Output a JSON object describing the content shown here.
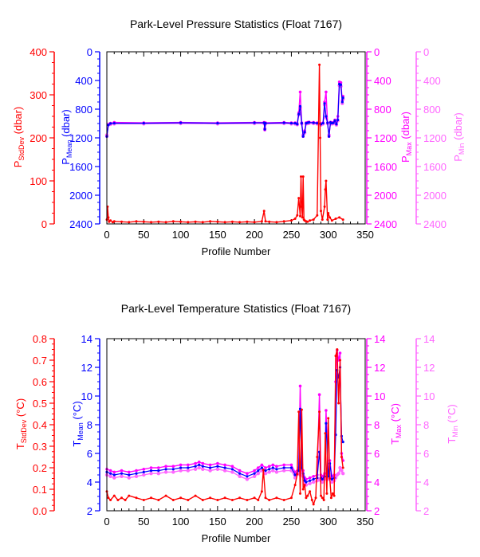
{
  "colors": {
    "stddev": "#ff0000",
    "mean": "#0000ff",
    "max": "#ff00ff",
    "min": "#ff66ff",
    "frame": "#000000"
  },
  "chart_data": [
    {
      "type": "line",
      "title": "Park-Level Pressure Statistics (Float 7167)",
      "xlabel": "Profile Number",
      "xlim": [
        0,
        350
      ],
      "x_ticks": [
        "0",
        "50",
        "100",
        "150",
        "200",
        "250",
        "300",
        "350"
      ],
      "axes": {
        "stddev": {
          "label_main": "P",
          "label_sub": "StdDev",
          "label_unit": " (dbar)",
          "range": [
            0,
            400
          ],
          "ticks": [
            "0",
            "100",
            "200",
            "300",
            "400"
          ]
        },
        "mean": {
          "label_main": "P",
          "label_sub": "Mean",
          "label_unit": " (dbar)",
          "range": [
            2400,
            0
          ],
          "ticks": [
            "0",
            "400",
            "800",
            "1200",
            "1600",
            "2000",
            "2400"
          ]
        },
        "max": {
          "label_main": "P",
          "label_sub": "Max",
          "label_unit": " (dbar)",
          "range": [
            2400,
            0
          ],
          "ticks": [
            "0",
            "400",
            "800",
            "1200",
            "1600",
            "2000",
            "2400"
          ]
        },
        "min": {
          "label_main": "P",
          "label_sub": "Min",
          "label_unit": " (dbar)",
          "range": [
            2400,
            0
          ],
          "ticks": [
            "0",
            "400",
            "800",
            "1200",
            "1600",
            "2000",
            "2400"
          ]
        }
      },
      "series": [
        {
          "name": "P Max",
          "axis": "max",
          "x": [
            0,
            2,
            5,
            10,
            50,
            100,
            150,
            200,
            213,
            214,
            215,
            240,
            250,
            255,
            258,
            260,
            262,
            264,
            266,
            268,
            270,
            272,
            274,
            280,
            285,
            290,
            293,
            295,
            297,
            299,
            301,
            303,
            305,
            307,
            309,
            311,
            313,
            315,
            317,
            319,
            320
          ],
          "y": [
            1180,
            1020,
            995,
            985,
            990,
            985,
            990,
            985,
            985,
            1090,
            990,
            985,
            990,
            990,
            1000,
            850,
            560,
            990,
            1180,
            1100,
            990,
            985,
            980,
            985,
            990,
            1000,
            990,
            700,
            560,
            990,
            1180,
            980,
            990,
            985,
            950,
            1000,
            900,
            420,
            430,
            680,
            620
          ]
        },
        {
          "name": "P Mean",
          "axis": "mean",
          "x": [
            0,
            2,
            5,
            10,
            50,
            100,
            150,
            200,
            213,
            214,
            215,
            240,
            250,
            255,
            258,
            260,
            262,
            264,
            266,
            268,
            270,
            272,
            274,
            280,
            285,
            290,
            293,
            295,
            297,
            299,
            301,
            303,
            305,
            307,
            309,
            311,
            313,
            315,
            317,
            319,
            320
          ],
          "y": [
            1180,
            1020,
            1000,
            995,
            995,
            990,
            995,
            990,
            990,
            1080,
            995,
            990,
            995,
            995,
            1010,
            870,
            760,
            995,
            1180,
            1120,
            995,
            990,
            985,
            990,
            995,
            1010,
            995,
            720,
            900,
            990,
            1180,
            985,
            995,
            990,
            960,
            1010,
            950,
            450,
            460,
            700,
            640
          ]
        },
        {
          "name": "P Min",
          "axis": "min",
          "x": [
            0,
            2,
            5,
            10,
            50,
            100,
            150,
            200,
            213,
            214,
            215,
            240,
            250,
            255,
            258,
            260,
            262,
            264,
            266,
            268,
            270,
            272,
            274,
            280,
            285,
            290,
            293,
            295,
            297,
            299,
            301,
            303,
            305,
            307,
            309,
            311,
            313,
            315,
            317,
            319,
            320
          ],
          "y": [
            1160,
            1010,
            1010,
            1005,
            1005,
            1000,
            1005,
            1000,
            1000,
            1070,
            1005,
            1000,
            1005,
            1005,
            1015,
            880,
            780,
            1005,
            1160,
            1130,
            1005,
            1000,
            995,
            1000,
            1005,
            1020,
            1005,
            740,
            920,
            1000,
            1160,
            995,
            1005,
            1000,
            970,
            1020,
            960,
            470,
            480,
            720,
            660
          ]
        },
        {
          "name": "P StdDev",
          "axis": "stddev",
          "x": [
            0,
            1,
            2,
            3,
            5,
            8,
            10,
            20,
            30,
            40,
            50,
            60,
            70,
            80,
            90,
            100,
            110,
            120,
            130,
            140,
            150,
            160,
            170,
            180,
            190,
            200,
            210,
            213,
            215,
            220,
            230,
            240,
            250,
            255,
            258,
            260,
            262,
            263,
            264,
            265,
            266,
            267,
            268,
            270,
            272,
            275,
            280,
            285,
            288,
            289,
            290,
            292,
            295,
            296,
            297,
            299,
            300,
            302,
            305,
            310,
            315,
            320
          ],
          "y": [
            10,
            40,
            15,
            5,
            8,
            4,
            6,
            5,
            4,
            6,
            5,
            4,
            5,
            4,
            6,
            5,
            4,
            5,
            4,
            6,
            5,
            4,
            5,
            4,
            5,
            4,
            6,
            30,
            6,
            5,
            4,
            6,
            8,
            12,
            20,
            60,
            18,
            110,
            40,
            15,
            110,
            10,
            8,
            6,
            5,
            8,
            10,
            20,
            370,
            200,
            30,
            10,
            40,
            80,
            100,
            10,
            25,
            15,
            8,
            12,
            15,
            10
          ]
        }
      ]
    },
    {
      "type": "line",
      "title": "Park-Level Temperature Statistics (Float 7167)",
      "xlabel": "Profile Number",
      "xlim": [
        0,
        350
      ],
      "x_ticks": [
        "0",
        "50",
        "100",
        "150",
        "200",
        "250",
        "300",
        "350"
      ],
      "axes": {
        "stddev": {
          "label_main": "T",
          "label_sub": "StdDev",
          "label_unit": " (°C)",
          "range": [
            0,
            0.8
          ],
          "ticks": [
            "0.0",
            "0.1",
            "0.2",
            "0.3",
            "0.4",
            "0.5",
            "0.6",
            "0.7",
            "0.8"
          ]
        },
        "mean": {
          "label_main": "T",
          "label_sub": "Mean",
          "label_unit": " (°C)",
          "range": [
            2,
            14
          ],
          "ticks": [
            "2",
            "4",
            "6",
            "8",
            "10",
            "12",
            "14"
          ]
        },
        "max": {
          "label_main": "T",
          "label_sub": "Max",
          "label_unit": " (°C)",
          "range": [
            2,
            14
          ],
          "ticks": [
            "2",
            "4",
            "6",
            "8",
            "10",
            "12",
            "14"
          ]
        },
        "min": {
          "label_main": "T",
          "label_sub": "Min",
          "label_unit": " (°C)",
          "range": [
            2,
            14
          ],
          "ticks": [
            "2",
            "4",
            "6",
            "8",
            "10",
            "12",
            "14"
          ]
        }
      },
      "series": [
        {
          "name": "T Max",
          "axis": "max",
          "x": [
            0,
            5,
            10,
            20,
            30,
            40,
            50,
            60,
            70,
            80,
            90,
            100,
            110,
            120,
            125,
            130,
            140,
            150,
            160,
            170,
            180,
            190,
            200,
            205,
            210,
            215,
            220,
            225,
            230,
            240,
            250,
            255,
            260,
            262,
            264,
            266,
            268,
            270,
            275,
            280,
            285,
            288,
            290,
            292,
            295,
            297,
            300,
            302,
            305,
            308,
            310,
            312,
            314,
            316,
            318,
            320
          ],
          "y": [
            4.9,
            4.8,
            4.7,
            4.8,
            4.7,
            4.8,
            4.9,
            5.0,
            5.0,
            5.1,
            5.1,
            5.2,
            5.2,
            5.3,
            5.4,
            5.3,
            5.2,
            5.3,
            5.2,
            5.1,
            4.8,
            4.6,
            4.8,
            5.0,
            5.2,
            5.0,
            5.1,
            5.2,
            5.1,
            5.2,
            5.2,
            4.7,
            5.0,
            10.7,
            5.2,
            4.8,
            4.3,
            4.2,
            4.3,
            4.4,
            4.5,
            10.1,
            4.5,
            4.4,
            4.6,
            9.0,
            4.6,
            5.5,
            4.4,
            4.5,
            11.0,
            13.2,
            12.5,
            13.0,
            6.0,
            5.5
          ]
        },
        {
          "name": "T Mean",
          "axis": "mean",
          "x": [
            0,
            5,
            10,
            20,
            30,
            40,
            50,
            60,
            70,
            80,
            90,
            100,
            110,
            120,
            125,
            130,
            140,
            150,
            160,
            170,
            180,
            190,
            200,
            205,
            210,
            215,
            220,
            225,
            230,
            240,
            250,
            255,
            260,
            262,
            264,
            266,
            268,
            270,
            275,
            280,
            285,
            288,
            290,
            292,
            295,
            297,
            300,
            302,
            305,
            308,
            310,
            312,
            314,
            316,
            318,
            320
          ],
          "y": [
            4.7,
            4.6,
            4.5,
            4.6,
            4.5,
            4.6,
            4.7,
            4.8,
            4.8,
            4.9,
            4.9,
            5.0,
            5.0,
            5.1,
            5.2,
            5.1,
            5.0,
            5.1,
            5.0,
            4.9,
            4.6,
            4.4,
            4.6,
            4.8,
            5.0,
            4.8,
            4.9,
            5.0,
            4.9,
            5.0,
            5.0,
            4.5,
            4.8,
            9.1,
            5.0,
            4.6,
            4.1,
            4.0,
            4.1,
            4.2,
            4.3,
            6.1,
            4.3,
            4.2,
            4.4,
            8.1,
            4.4,
            5.3,
            4.2,
            4.3,
            7.3,
            11.8,
            11.3,
            12.0,
            7.2,
            6.8
          ]
        },
        {
          "name": "T Min",
          "axis": "min",
          "x": [
            0,
            5,
            10,
            20,
            30,
            40,
            50,
            60,
            70,
            80,
            90,
            100,
            110,
            120,
            125,
            130,
            140,
            150,
            160,
            170,
            180,
            190,
            200,
            205,
            210,
            215,
            220,
            225,
            230,
            240,
            250,
            255,
            260,
            262,
            264,
            266,
            268,
            270,
            275,
            280,
            285,
            288,
            290,
            292,
            295,
            297,
            300,
            302,
            305,
            308,
            310,
            312,
            314,
            316,
            318,
            320
          ],
          "y": [
            4.5,
            4.4,
            4.3,
            4.4,
            4.3,
            4.4,
            4.5,
            4.6,
            4.6,
            4.7,
            4.7,
            4.8,
            4.8,
            4.9,
            5.0,
            4.9,
            4.8,
            4.9,
            4.8,
            4.7,
            4.4,
            4.2,
            4.4,
            4.6,
            4.8,
            4.6,
            4.7,
            4.8,
            4.7,
            4.8,
            4.8,
            4.3,
            4.6,
            4.5,
            4.8,
            4.4,
            3.9,
            3.8,
            3.9,
            4.0,
            4.1,
            4.2,
            4.1,
            4.0,
            4.2,
            4.3,
            4.2,
            4.5,
            4.0,
            4.1,
            4.3,
            4.5,
            4.6,
            5.0,
            4.8,
            4.6
          ]
        },
        {
          "name": "T StdDev",
          "axis": "stddev",
          "x": [
            0,
            2,
            5,
            10,
            15,
            20,
            25,
            30,
            40,
            50,
            60,
            70,
            80,
            90,
            100,
            110,
            120,
            130,
            140,
            150,
            160,
            170,
            180,
            190,
            200,
            205,
            210,
            212,
            215,
            220,
            230,
            240,
            250,
            255,
            258,
            260,
            262,
            264,
            266,
            268,
            270,
            272,
            275,
            278,
            280,
            283,
            285,
            288,
            290,
            292,
            294,
            296,
            298,
            300,
            302,
            304,
            306,
            308,
            310,
            312,
            314,
            316,
            318,
            320
          ],
          "y": [
            0.09,
            0.06,
            0.05,
            0.07,
            0.05,
            0.06,
            0.05,
            0.07,
            0.06,
            0.05,
            0.06,
            0.05,
            0.07,
            0.05,
            0.06,
            0.05,
            0.07,
            0.05,
            0.06,
            0.05,
            0.06,
            0.05,
            0.06,
            0.05,
            0.06,
            0.05,
            0.09,
            0.19,
            0.06,
            0.05,
            0.06,
            0.05,
            0.06,
            0.12,
            0.17,
            0.46,
            0.08,
            0.47,
            0.1,
            0.12,
            0.06,
            0.07,
            0.09,
            0.05,
            0.03,
            0.06,
            0.25,
            0.46,
            0.07,
            0.06,
            0.05,
            0.36,
            0.08,
            0.43,
            0.15,
            0.06,
            0.08,
            0.07,
            0.72,
            0.75,
            0.5,
            0.7,
            0.25,
            0.2
          ]
        }
      ]
    }
  ]
}
